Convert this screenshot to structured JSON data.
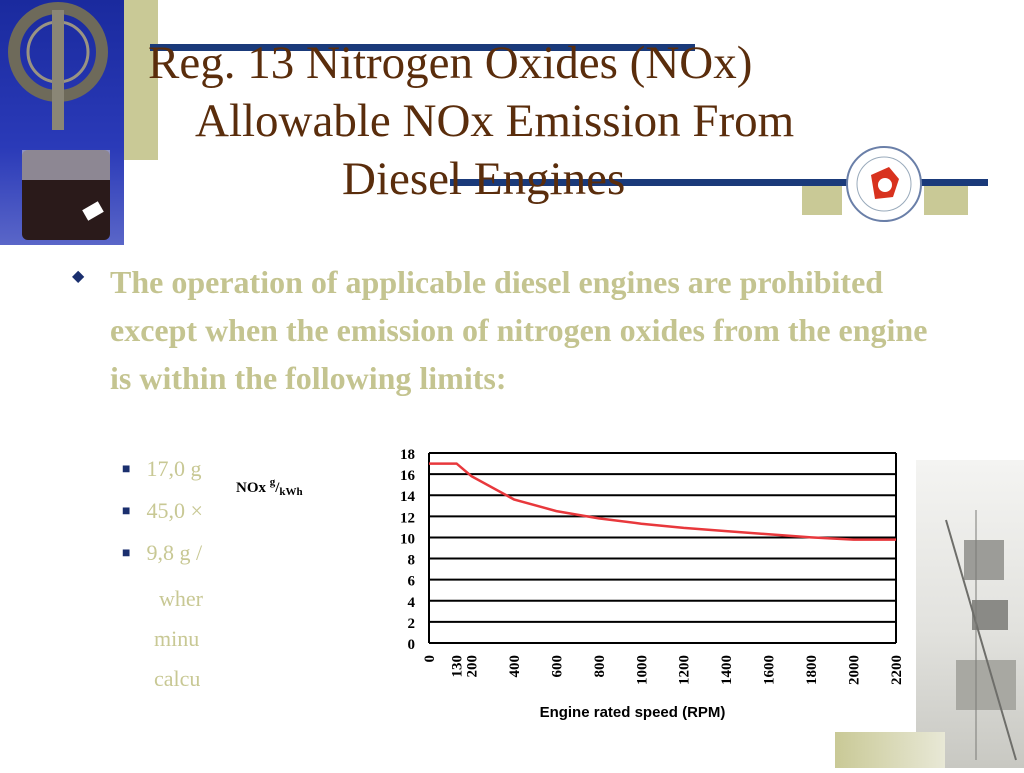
{
  "slide": {
    "title_lines": [
      "Reg. 13 Nitrogen Oxides (NOx)",
      "Allowable NOx Emission From",
      "Diesel Engines"
    ],
    "bullet_main": "The operation of applicable diesel engines are prohibited except when the emission of nitrogen oxides from the engine is within the following limits:",
    "sub_bullets": [
      "17,0 g",
      "45,0 ×",
      "9,8 g /"
    ],
    "continuation_lines": [
      "wher",
      "minu",
      "calcu"
    ],
    "logo_icon": "school-emblem-icon",
    "photo_left": "flange-apparatus-photo",
    "photo_right": "ship-deck-photo"
  },
  "colors": {
    "title": "#5a2d0c",
    "bullet_text": "#c4c490",
    "accent_bar": "#1a3a7a",
    "chart_line": "#e8383c"
  },
  "chart_data": {
    "type": "line",
    "title": "",
    "xlabel": "Engine rated speed (RPM)",
    "ylabel": "NOx g/kWh",
    "categories": [
      "0",
      "130",
      "200",
      "400",
      "600",
      "800",
      "1000",
      "1200",
      "1400",
      "1600",
      "1800",
      "2000",
      "2200"
    ],
    "ylim": [
      0,
      18
    ],
    "yticks": [
      "0",
      "2",
      "4",
      "6",
      "8",
      "10",
      "12",
      "14",
      "16",
      "18"
    ],
    "grid": "horizontal",
    "series": [
      {
        "values": [
          17.0,
          17.0,
          15.8,
          13.6,
          12.5,
          11.8,
          11.3,
          10.9,
          10.6,
          10.3,
          10.0,
          9.8,
          9.8
        ]
      }
    ]
  }
}
